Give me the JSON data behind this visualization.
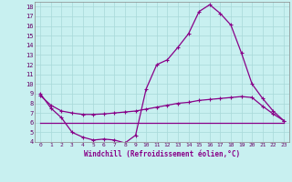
{
  "xlabel": "Windchill (Refroidissement éolien,°C)",
  "bg_color": "#c8f0f0",
  "grid_color": "#a8d8d8",
  "line_color": "#880088",
  "ylim": [
    4,
    18.5
  ],
  "xlim": [
    -0.5,
    23.5
  ],
  "yticks": [
    4,
    5,
    6,
    7,
    8,
    9,
    10,
    11,
    12,
    13,
    14,
    15,
    16,
    17,
    18
  ],
  "xticks": [
    0,
    1,
    2,
    3,
    4,
    5,
    6,
    7,
    8,
    9,
    10,
    11,
    12,
    13,
    14,
    15,
    16,
    17,
    18,
    19,
    20,
    21,
    22,
    23
  ],
  "line1_x": [
    0,
    1,
    2,
    3,
    4,
    5,
    6,
    7,
    8,
    9,
    10,
    11,
    12,
    13,
    14,
    15,
    16,
    17,
    18,
    19,
    20,
    21,
    22,
    23
  ],
  "line1_y": [
    9.0,
    7.5,
    6.5,
    5.0,
    4.5,
    4.2,
    4.3,
    4.2,
    3.9,
    4.7,
    9.5,
    12.0,
    12.5,
    13.8,
    15.2,
    17.5,
    18.2,
    17.3,
    16.1,
    13.2,
    10.0,
    8.5,
    7.2,
    6.2
  ],
  "line2_x": [
    0,
    1,
    2,
    3,
    4,
    5,
    6,
    7,
    8,
    9,
    10,
    11,
    12,
    13,
    14,
    15,
    16,
    17,
    18,
    19,
    20,
    21,
    22,
    23
  ],
  "line2_y": [
    8.8,
    7.8,
    7.2,
    7.0,
    6.85,
    6.85,
    6.9,
    7.0,
    7.1,
    7.2,
    7.4,
    7.6,
    7.8,
    8.0,
    8.1,
    8.3,
    8.4,
    8.5,
    8.6,
    8.7,
    8.6,
    7.7,
    6.9,
    6.2
  ],
  "line3_x": [
    0,
    2,
    23
  ],
  "line3_y": [
    6.0,
    6.0,
    6.0
  ]
}
